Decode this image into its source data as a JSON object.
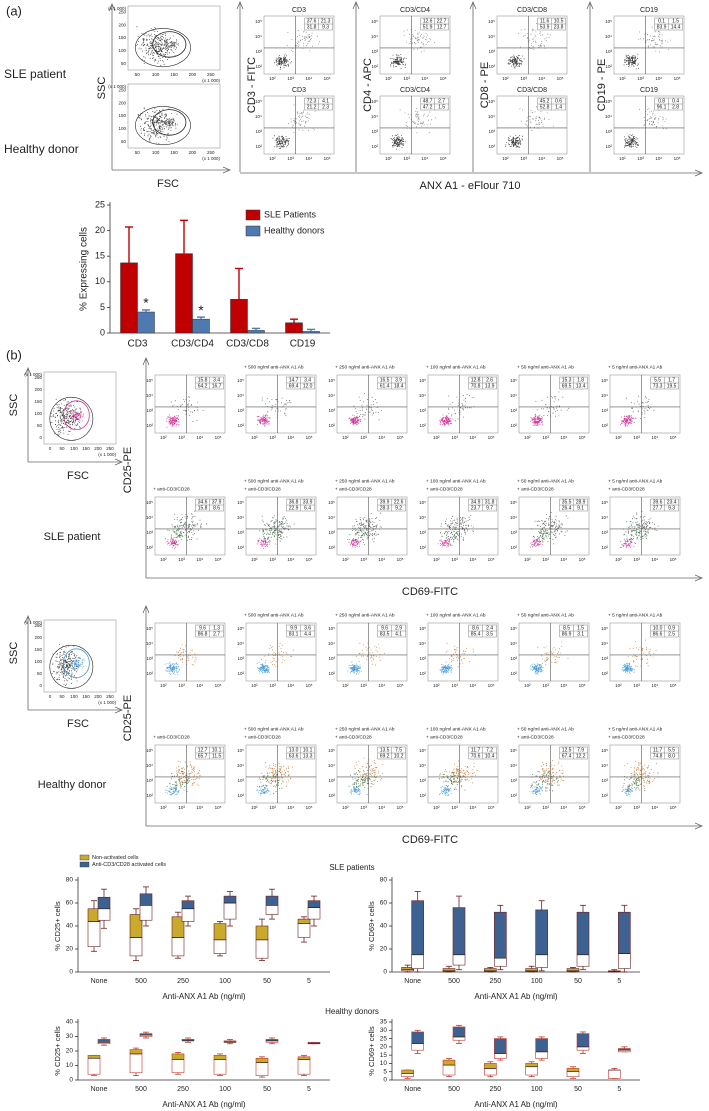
{
  "panel_a": {
    "label": "(a)",
    "rows": [
      "SLE patient",
      "Healthy donor"
    ],
    "ssc": "SSC",
    "fsc": "FSC",
    "scale": "(x 1 000)",
    "scatter_ticks": [
      "50",
      "100",
      "150",
      "200",
      "250"
    ],
    "log_ticks": [
      "10²",
      "10³",
      "10⁴",
      "10⁵"
    ],
    "x_axis": "ANX A1 - eFlour 710",
    "columns": [
      {
        "axis": "CD3 - FITC",
        "plots": [
          {
            "title": "CD3",
            "quadrants": [
              "37.6",
              "21.3",
              "31.8",
              "9.3"
            ]
          },
          {
            "title": "CD3",
            "quadrants": [
              "72.3",
              "4.1",
              "21.2",
              "2.3"
            ]
          }
        ]
      },
      {
        "axis": "CD4 - APC",
        "plots": [
          {
            "title": "CD3/CD4",
            "quadrants": [
              "12.6",
              "22.7",
              "51.9",
              "12.7"
            ]
          },
          {
            "title": "CD3/CD4",
            "quadrants": [
              "48.7",
              "2.7",
              "47.2",
              "1.5"
            ]
          }
        ]
      },
      {
        "axis": "CD8 - PE",
        "plots": [
          {
            "title": "CD3/CD8",
            "quadrants": [
              "11.6",
              "10.5",
              "53.9",
              "23.8"
            ]
          },
          {
            "title": "CD3/CD8",
            "quadrants": [
              "45.2",
              "0.6",
              "52.8",
              "1.4"
            ]
          }
        ]
      },
      {
        "axis": "CD19 - PE",
        "plots": [
          {
            "title": "CD19",
            "quadrants": [
              "0.1",
              "1.5",
              "83.9",
              "14.4"
            ]
          },
          {
            "title": "CD19",
            "quadrants": [
              "0.8",
              "0.4",
              "96.1",
              "2.8"
            ]
          }
        ]
      }
    ]
  },
  "panel_b": {
    "label": "(b)",
    "ssc": "SSC",
    "fsc": "FSC",
    "scale": "(x 1 000)",
    "scatter_ticks": [
      "0",
      "50",
      "100",
      "150",
      "200",
      "250"
    ],
    "log_ticks": [
      "10²",
      "10³",
      "10⁴",
      "10⁵"
    ],
    "y_axis": "CD25-PE",
    "x_axis": "CD69-FITC",
    "treatments": [
      "+ 500 ng/ml anti-ANX A1 Ab",
      "+ 250 ng/ml anti-ANX A1 Ab",
      "+ 100 ng/ml anti-ANX A1 Ab",
      "+ 50 ng/ml anti-ANX A1 Ab",
      "+ 5 ng/ml anti-ANX A1 Ab"
    ],
    "stimulus": "+ anti-CD3/CD28",
    "donors": [
      {
        "name": "SLE patient",
        "colors": [
          "#d2339a",
          "#555555"
        ],
        "rows": [
          [
            [
              "15.8",
              "3.4",
              "64.2",
              "16.7"
            ],
            [
              "14.7",
              "3.4",
              "69.4",
              "12.0"
            ],
            [
              "16.5",
              "3.9",
              "61.4",
              "18.4"
            ],
            [
              "12.8",
              "2.6",
              "70.8",
              "13.9"
            ],
            [
              "15.3",
              "1.8",
              "69.5",
              "13.4"
            ],
            [
              "5.5",
              "1.7",
              "73.3",
              "19.5"
            ]
          ],
          [
            [
              "34.6",
              "37.9",
              "15.8",
              "8.6"
            ],
            [
              "36.8",
              "33.9",
              "22.9",
              "6.4"
            ],
            [
              "39.9",
              "22.6",
              "28.3",
              "9.2"
            ],
            [
              "34.9",
              "31.8",
              "23.7",
              "9.7"
            ],
            [
              "35.5",
              "28.9",
              "26.4",
              "9.1"
            ],
            [
              "39.6",
              "23.4",
              "27.7",
              "9.3"
            ]
          ]
        ]
      },
      {
        "name": "Healthy donor",
        "colors": [
          "#4a9bd6",
          "#c8742c"
        ],
        "rows": [
          [
            [
              "9.6",
              "1.3",
              "86.8",
              "2.7"
            ],
            [
              "9.9",
              "3.6",
              "83.1",
              "4.4"
            ],
            [
              "9.6",
              "2.9",
              "83.5",
              "4.1"
            ],
            [
              "8.6",
              "2.4",
              "85.4",
              "3.5"
            ],
            [
              "8.5",
              "1.5",
              "86.9",
              "3.1"
            ],
            [
              "10.0",
              "0.9",
              "86.6",
              "2.5"
            ]
          ],
          [
            [
              "12.7",
              "10.1",
              "65.7",
              "11.5"
            ],
            [
              "13.0",
              "10.1",
              "63.6",
              "13.3"
            ],
            [
              "13.5",
              "7.5",
              "69.2",
              "10.2"
            ],
            [
              "11.7",
              "7.2",
              "70.6",
              "10.4"
            ],
            [
              "12.5",
              "7.9",
              "67.4",
              "12.2"
            ],
            [
              "11.7",
              "5.5",
              "74.8",
              "8.0"
            ]
          ]
        ]
      }
    ]
  },
  "box_groups": [
    "SLE patients",
    "Healthy donors"
  ],
  "chart_data": [
    {
      "type": "bar",
      "ylabel": "% Expressing cells",
      "categories": [
        "CD3",
        "CD3/CD4",
        "CD3/CD8",
        "CD19"
      ],
      "series": [
        {
          "name": "SLE Patients",
          "color": "#c00000",
          "values": [
            13.7,
            15.5,
            6.6,
            2.0
          ],
          "errors": [
            7.0,
            6.5,
            6.0,
            0.7
          ]
        },
        {
          "name": "Healthy donors",
          "color": "#4f7ab0",
          "values": [
            4.1,
            2.7,
            0.5,
            0.3
          ],
          "errors": [
            0.4,
            0.4,
            0.4,
            0.4
          ]
        }
      ],
      "ylim": [
        0,
        25
      ],
      "yticks": [
        0,
        5,
        10,
        15,
        20,
        25
      ],
      "annotations": [
        {
          "text": "*",
          "x": "CD3"
        },
        {
          "text": "*",
          "x": "CD3/CD4"
        }
      ]
    },
    {
      "type": "box",
      "ylabel": "% CD25+ cells",
      "xlabel": "Anti-ANX A1 Ab (ng/ml)",
      "categories": [
        "None",
        "500",
        "250",
        "100",
        "50",
        "5"
      ],
      "ylim": [
        0,
        80
      ],
      "yticks": [
        0,
        20,
        40,
        60,
        80
      ],
      "whisker_color": "#6b2020",
      "series": [
        {
          "name": "Non-activated cells",
          "color": "#c9aa2c",
          "values": [
            [
              18,
              22,
              44,
              55,
              62
            ],
            [
              10,
              14,
              30,
              50,
              55
            ],
            [
              12,
              14,
              30,
              48,
              52
            ],
            [
              14,
              16,
              28,
              42,
              44
            ],
            [
              10,
              12,
              28,
              40,
              46
            ],
            [
              26,
              30,
              42,
              46,
              48
            ]
          ]
        },
        {
          "name": "Anti-CD3/CD28 activated cells",
          "color": "#3d6191",
          "values": [
            [
              38,
              45,
              55,
              65,
              72
            ],
            [
              40,
              45,
              58,
              68,
              74
            ],
            [
              40,
              44,
              55,
              62,
              66
            ],
            [
              40,
              46,
              60,
              66,
              70
            ],
            [
              46,
              50,
              58,
              66,
              72
            ],
            [
              40,
              46,
              56,
              62,
              66
            ]
          ]
        }
      ]
    },
    {
      "type": "box",
      "ylabel": "% CD69+ cells",
      "xlabel": "Anti-ANX A1 Ab (ng/ml)",
      "categories": [
        "None",
        "500",
        "250",
        "100",
        "50",
        "5"
      ],
      "ylim": [
        0,
        80
      ],
      "yticks": [
        0,
        20,
        40,
        60,
        80
      ],
      "whisker_color": "#6b2020",
      "series": [
        {
          "color": "#c9aa2c",
          "values": [
            [
              0,
              1,
              2,
              4,
              6
            ],
            [
              0,
              0.5,
              1,
              3,
              5
            ],
            [
              0,
              0.5,
              1,
              3,
              4
            ],
            [
              0,
              0.5,
              1,
              3,
              5
            ],
            [
              0,
              0.5,
              1,
              3,
              4
            ],
            [
              0,
              0,
              0.5,
              1,
              2
            ]
          ]
        },
        {
          "color": "#3d6191",
          "values": [
            [
              0,
              3,
              15,
              62,
              70
            ],
            [
              2,
              6,
              15,
              56,
              66
            ],
            [
              2,
              5,
              12,
              52,
              58
            ],
            [
              1,
              4,
              15,
              54,
              62
            ],
            [
              2,
              5,
              15,
              52,
              58
            ],
            [
              0,
              3,
              16,
              52,
              58
            ]
          ]
        }
      ]
    },
    {
      "type": "box",
      "ylabel": "% CD25+ cells",
      "xlabel": "Anti-ANX A1 Ab (ng/ml)",
      "categories": [
        "None",
        "500",
        "250",
        "100",
        "50",
        "5"
      ],
      "ylim": [
        0,
        40
      ],
      "yticks": [
        0,
        10,
        20,
        30,
        40
      ],
      "whisker_color": "#c0392b",
      "series": [
        {
          "color": "#c9aa2c",
          "values": [
            [
              3,
              4,
              15,
              17,
              17
            ],
            [
              3,
              5,
              18,
              21,
              22
            ],
            [
              4,
              5,
              14,
              18,
              19
            ],
            [
              3,
              4,
              14,
              17,
              18
            ],
            [
              2,
              3,
              12,
              15,
              16
            ],
            [
              3,
              4,
              14,
              16,
              17
            ]
          ]
        },
        {
          "color": "#3d6191",
          "values": [
            [
              24,
              25,
              26,
              28,
              29
            ],
            [
              29,
              30,
              31,
              32,
              33
            ],
            [
              26,
              27,
              27,
              28,
              29
            ],
            [
              25,
              26,
              26,
              27,
              28
            ],
            [
              25,
              26,
              27,
              28,
              29
            ],
            [
              25,
              25,
              25,
              26,
              26
            ]
          ]
        }
      ]
    },
    {
      "type": "box",
      "ylabel": "% CD69+ cells",
      "xlabel": "Anti-ANX A1 Ab (ng/ml)",
      "categories": [
        "None",
        "500",
        "250",
        "100",
        "50",
        "5"
      ],
      "ylim": [
        0,
        35
      ],
      "yticks": [
        0,
        5,
        10,
        15,
        20,
        25,
        30,
        35
      ],
      "whisker_color": "#c0392b",
      "series": [
        {
          "color": "#c9aa2c",
          "values": [
            [
              1,
              2,
              4,
              6,
              6
            ],
            [
              2,
              3,
              9,
              12,
              13
            ],
            [
              2,
              3,
              7,
              10,
              11
            ],
            [
              2,
              3,
              8,
              10,
              11
            ],
            [
              1,
              2,
              5,
              7,
              8
            ],
            [
              1,
              1,
              6,
              6,
              7
            ]
          ]
        },
        {
          "color": "#3d6191",
          "values": [
            [
              16,
              18,
              22,
              29,
              30
            ],
            [
              22,
              24,
              26,
              32,
              33
            ],
            [
              12,
              13,
              16,
              25,
              26
            ],
            [
              12,
              13,
              17,
              25,
              26
            ],
            [
              16,
              18,
              20,
              28,
              29
            ],
            [
              17,
              17,
              18,
              19,
              20
            ]
          ]
        }
      ]
    }
  ]
}
